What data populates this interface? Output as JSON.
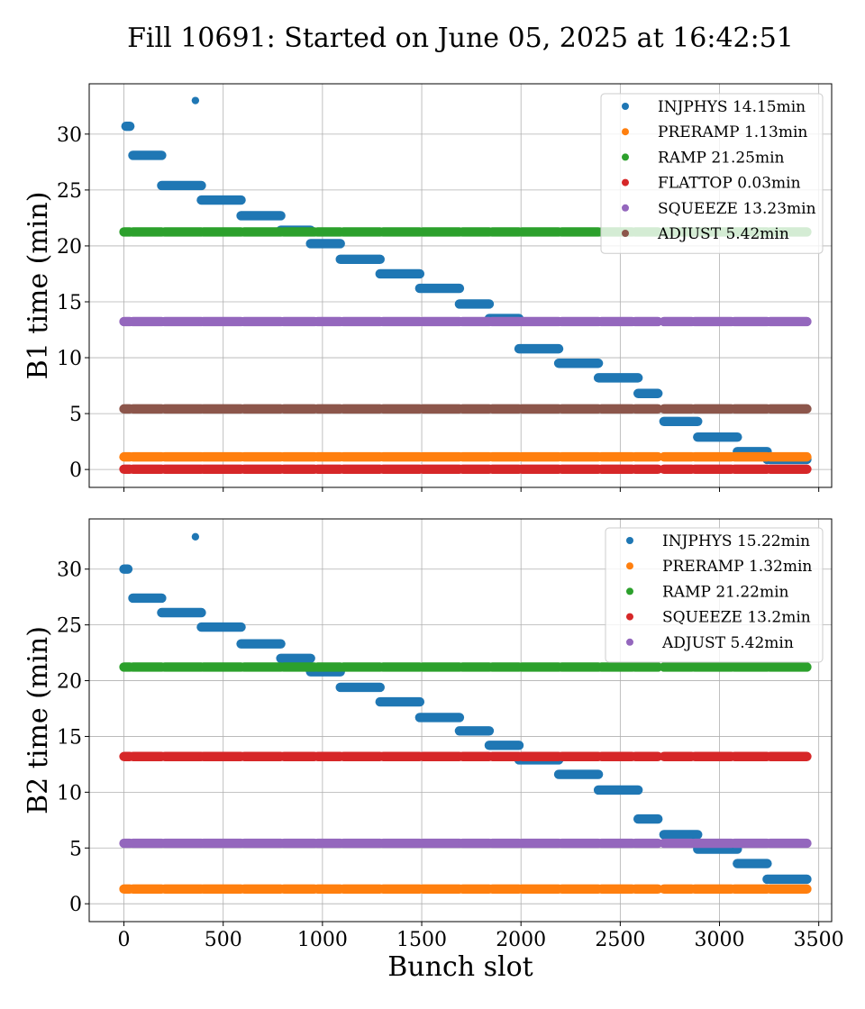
{
  "chart_data": {
    "title": "Fill 10691: Started on June 05, 2025 at 16:42:51",
    "xlabel": "Bunch slot",
    "xlim": [
      -175,
      3565
    ],
    "xticks": [
      0,
      500,
      1000,
      1500,
      2000,
      2500,
      3000,
      3500
    ],
    "grid": true,
    "legend_placement": "upper right",
    "colors": {
      "blue": "#1f77b4",
      "orange": "#ff7f0e",
      "green": "#2ca02c",
      "red": "#d62728",
      "purple": "#9467bd",
      "brown": "#8c564b"
    },
    "panels": [
      {
        "type": "scatter",
        "ylabel": "B1 time (min)",
        "ylim": [
          -1.6,
          34.5
        ],
        "yticks": [
          0,
          5,
          10,
          15,
          20,
          25,
          30
        ],
        "series": [
          {
            "name": "INJPHYS 14.15min",
            "color": "#1f77b4",
            "segments": [
              [
                10,
                30,
                30.7
              ],
              [
                45,
                190,
                28.1
              ],
              [
                190,
                390,
                25.4
              ],
              [
                390,
                590,
                24.1
              ],
              [
                590,
                790,
                22.7
              ],
              [
                790,
                940,
                21.4
              ],
              [
                940,
                1090,
                20.2
              ],
              [
                1090,
                1290,
                18.8
              ],
              [
                1290,
                1490,
                17.5
              ],
              [
                1490,
                1690,
                16.2
              ],
              [
                1690,
                1840,
                14.8
              ],
              [
                1840,
                1990,
                13.5
              ],
              [
                1990,
                2190,
                10.8
              ],
              [
                2190,
                2390,
                9.5
              ],
              [
                2390,
                2590,
                8.2
              ],
              [
                2590,
                2690,
                6.8
              ],
              [
                2720,
                2890,
                4.3
              ],
              [
                2890,
                3090,
                2.9
              ],
              [
                3090,
                3240,
                1.6
              ],
              [
                3240,
                3440,
                0.9
              ]
            ],
            "points": [
              [
                360,
                33.0
              ]
            ]
          },
          {
            "name": "PRERAMP 1.13min",
            "color": "#ff7f0e",
            "value": 1.13
          },
          {
            "name": "RAMP 21.25min",
            "color": "#2ca02c",
            "value": 21.25
          },
          {
            "name": "FLATTOP 0.03min",
            "color": "#d62728",
            "value": 0.03
          },
          {
            "name": "SQUEEZE 13.23min",
            "color": "#9467bd",
            "value": 13.23
          },
          {
            "name": "ADJUST 5.42min",
            "color": "#8c564b",
            "value": 5.42
          }
        ]
      },
      {
        "type": "scatter",
        "ylabel": "B2 time (min)",
        "ylim": [
          -1.6,
          34.5
        ],
        "yticks": [
          0,
          5,
          10,
          15,
          20,
          25,
          30
        ],
        "series": [
          {
            "name": "INJPHYS 15.22min",
            "color": "#1f77b4",
            "segments": [
              [
                0,
                20,
                30.0
              ],
              [
                45,
                190,
                27.4
              ],
              [
                190,
                390,
                26.1
              ],
              [
                390,
                590,
                24.8
              ],
              [
                590,
                790,
                23.3
              ],
              [
                790,
                940,
                22.0
              ],
              [
                940,
                1090,
                20.8
              ],
              [
                1090,
                1290,
                19.4
              ],
              [
                1290,
                1490,
                18.1
              ],
              [
                1490,
                1690,
                16.7
              ],
              [
                1690,
                1840,
                15.5
              ],
              [
                1840,
                1990,
                14.2
              ],
              [
                1990,
                2190,
                12.9
              ],
              [
                2190,
                2390,
                11.6
              ],
              [
                2390,
                2590,
                10.2
              ],
              [
                2590,
                2690,
                7.6
              ],
              [
                2720,
                2890,
                6.2
              ],
              [
                2890,
                3090,
                4.9
              ],
              [
                3090,
                3240,
                3.6
              ],
              [
                3240,
                3440,
                2.2
              ]
            ],
            "points": [
              [
                360,
                32.9
              ]
            ]
          },
          {
            "name": "PRERAMP 1.32min",
            "color": "#ff7f0e",
            "value": 1.32
          },
          {
            "name": "RAMP 21.22min",
            "color": "#2ca02c",
            "value": 21.22
          },
          {
            "name": "SQUEEZE 13.2min",
            "color": "#d62728",
            "value": 13.2
          },
          {
            "name": "ADJUST 5.42min",
            "color": "#9467bd",
            "value": 5.42
          }
        ]
      }
    ],
    "bunch_trains": [
      [
        0,
        30
      ],
      [
        45,
        190
      ],
      [
        205,
        390
      ],
      [
        400,
        590
      ],
      [
        605,
        790
      ],
      [
        805,
        960
      ],
      [
        975,
        1090
      ],
      [
        1105,
        1290
      ],
      [
        1305,
        1490
      ],
      [
        1505,
        1690
      ],
      [
        1705,
        1840
      ],
      [
        1855,
        1990
      ],
      [
        2005,
        2190
      ],
      [
        2205,
        2390
      ],
      [
        2405,
        2560
      ],
      [
        2575,
        2690
      ],
      [
        2720,
        2860
      ],
      [
        2875,
        3060
      ],
      [
        3075,
        3240
      ],
      [
        3255,
        3440
      ]
    ]
  }
}
